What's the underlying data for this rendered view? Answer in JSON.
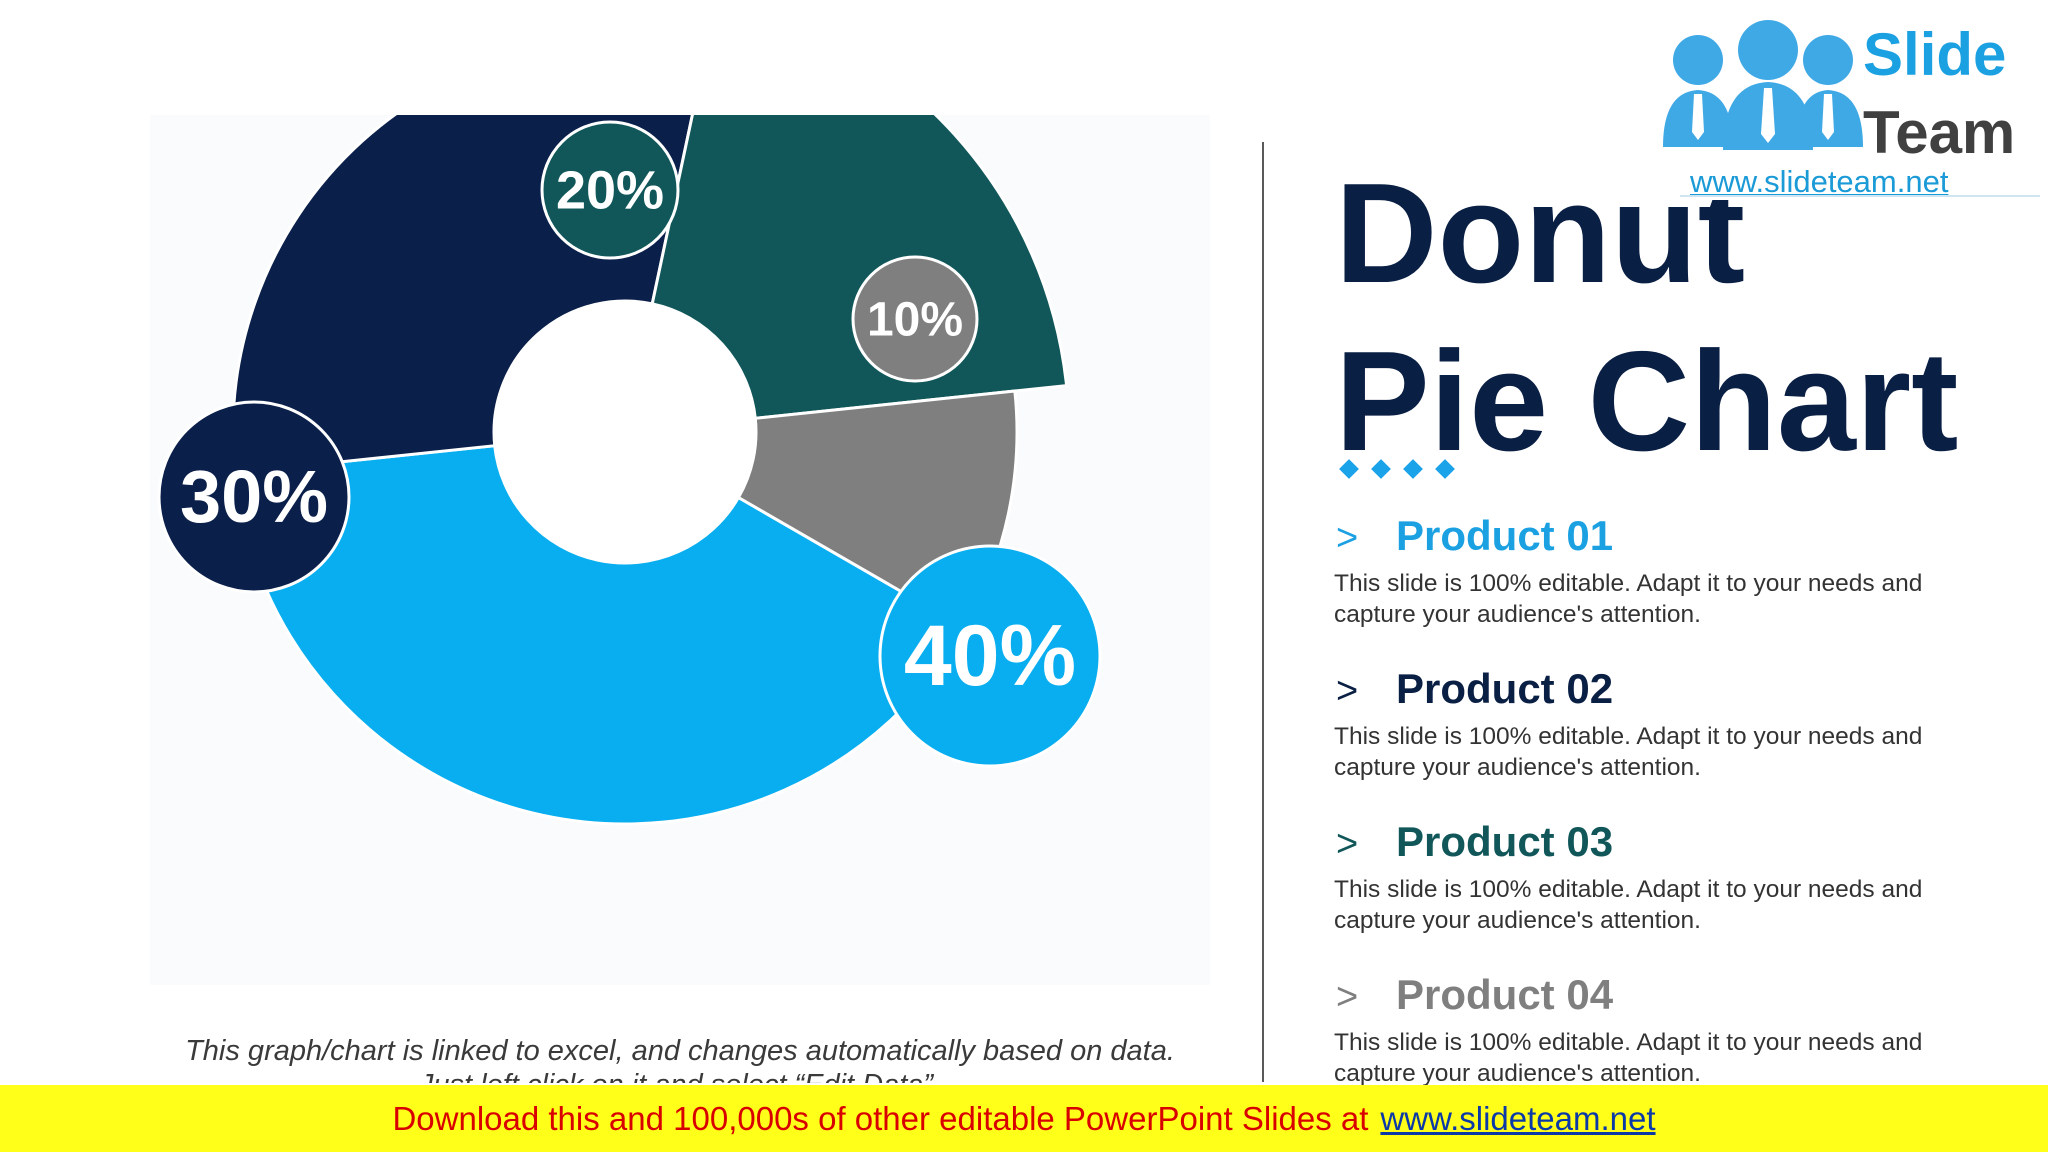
{
  "chart_data": {
    "type": "pie",
    "style": "donut",
    "categories": [
      "Product 01",
      "Product 02",
      "Product 03",
      "Product 04"
    ],
    "values": [
      40,
      30,
      20,
      10
    ],
    "labels": [
      "40%",
      "30%",
      "20%",
      "10%"
    ],
    "colors": [
      "#08aeef",
      "#0a1f4a",
      "#11575a",
      "#7f7f7f"
    ]
  },
  "caption": "This graph/chart is linked to excel, and changes automatically based on data. Just left click on it and select “Edit Data”.",
  "title_line1": "Donut",
  "title_line2": "Pie Chart",
  "products": [
    {
      "chevron": ">",
      "name": "Product 01",
      "desc": "This slide is 100% editable. Adapt it to your needs and capture your audience's attention.",
      "color": "#1ba1e2"
    },
    {
      "chevron": ">",
      "name": "Product 02",
      "desc": "This slide is 100% editable. Adapt it to your needs and capture your audience's attention.",
      "color": "#0a1f44"
    },
    {
      "chevron": ">",
      "name": "Product 03",
      "desc": "This slide is 100% editable. Adapt it to your needs and capture your audience's attention.",
      "color": "#11575a"
    },
    {
      "chevron": ">",
      "name": "Product 04",
      "desc": "This slide is 100% editable. Adapt it to your needs and capture your audience's attention.",
      "color": "#7f7f7f"
    }
  ],
  "logo": {
    "word1": "Slide",
    "word2": "Team",
    "url": "www.slideteam.net"
  },
  "banner": {
    "text": "Download this and 100,000s of other editable PowerPoint Slides at",
    "link": "www.slideteam.net"
  }
}
